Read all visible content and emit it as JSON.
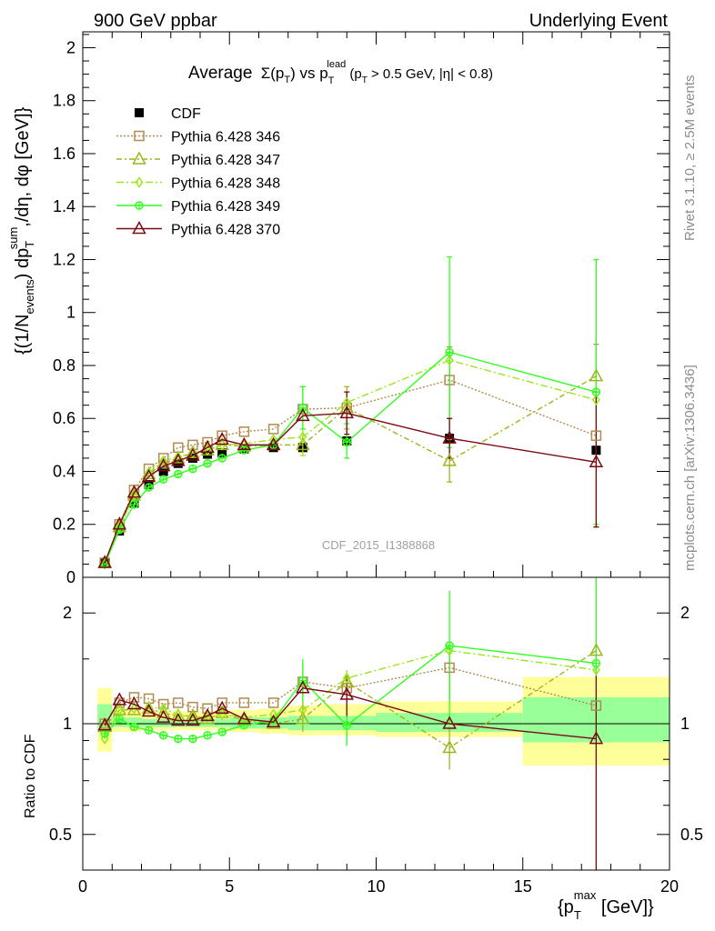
{
  "header": {
    "left": "900 GeV ppbar",
    "right": "Underlying Event"
  },
  "side_labels": {
    "rivet": "Rivet 3.1.10, ≥ 2.5M events",
    "mcplots": "mcplots.cern.ch [arXiv:1306.3436]"
  },
  "title": {
    "average": "Average",
    "sigma": "Σ(p",
    "sub_T": "T",
    "close": ")",
    "vs": " vs p",
    "lead": "lead",
    "cut": " (p",
    "cut_rest": " > 0.5 GeV, |η| < 0.8)"
  },
  "watermark": "CDF_2015_I1388868",
  "ylabel": {
    "part1": "{(1/N",
    "events": "events",
    "part2": ") dp",
    "sum": "sum",
    "T": "T",
    "part3": ",/dη, dφ [GeV]}"
  },
  "ratio_ylabel": "Ratio to CDF",
  "xlabel": {
    "part1": "{p",
    "max": "max",
    "T": "T",
    "part2": " [GeV]}"
  },
  "colors": {
    "cdf": "#000000",
    "p346": "#b08c50",
    "p347": "#a0b41e",
    "p348": "#9ce61e",
    "p349": "#32ff1e",
    "p370": "#7a0a14",
    "band_outer": "#ffff99",
    "band_inner": "#99ff99"
  },
  "chart_data": {
    "type": "line",
    "x_axis": {
      "ticks": [
        0,
        5,
        10,
        15,
        20
      ],
      "tick_labels": [
        "0",
        "5",
        "10",
        "15",
        "20"
      ],
      "range": [
        0,
        20
      ]
    },
    "main_y_axis": {
      "range": [
        0,
        2.06
      ],
      "ticks": [
        0,
        0.2,
        0.4,
        0.6,
        0.8,
        1,
        1.2,
        1.4,
        1.6,
        1.8,
        2
      ],
      "tick_labels": [
        "0",
        "0.2",
        "0.4",
        "0.6",
        "0.8",
        "1",
        "1.2",
        "1.4",
        "1.6",
        "1.8",
        "2"
      ]
    },
    "ratio_y_axis": {
      "scale": "log",
      "range": [
        0.4,
        2.5
      ],
      "ticks": [
        0.5,
        1,
        2
      ],
      "tick_labels": [
        "0.5",
        "1",
        "2"
      ]
    },
    "x": [
      0.75,
      1.25,
      1.75,
      2.25,
      2.75,
      3.25,
      3.75,
      4.25,
      4.75,
      5.5,
      6.5,
      7.5,
      9.0,
      12.5,
      17.5
    ],
    "x_bins": [
      [
        0.5,
        1.0
      ],
      [
        1.0,
        1.5
      ],
      [
        1.5,
        2.0
      ],
      [
        2.0,
        2.5
      ],
      [
        2.5,
        3.0
      ],
      [
        3.0,
        3.5
      ],
      [
        3.5,
        4.0
      ],
      [
        4.0,
        4.5
      ],
      [
        4.5,
        5.0
      ],
      [
        5.0,
        6.0
      ],
      [
        6.0,
        7.0
      ],
      [
        7.0,
        8.0
      ],
      [
        8.0,
        10.0
      ],
      [
        10.0,
        15.0
      ],
      [
        15.0,
        20.0
      ]
    ],
    "data": {
      "name": "CDF",
      "values": [
        0.055,
        0.175,
        0.28,
        0.35,
        0.4,
        0.43,
        0.45,
        0.465,
        0.47,
        0.485,
        0.49,
        0.49,
        0.515,
        0.525,
        0.48
      ],
      "ratio_band_inner": [
        [
          0.95,
          1.13
        ],
        [
          0.98,
          1.04
        ],
        [
          0.98,
          1.04
        ],
        [
          0.98,
          1.03
        ],
        [
          0.98,
          1.03
        ],
        [
          0.98,
          1.03
        ],
        [
          0.98,
          1.03
        ],
        [
          0.98,
          1.03
        ],
        [
          0.98,
          1.03
        ],
        [
          0.97,
          1.04
        ],
        [
          0.97,
          1.04
        ],
        [
          0.96,
          1.05
        ],
        [
          0.96,
          1.05
        ],
        [
          0.95,
          1.07
        ],
        [
          0.89,
          1.18
        ]
      ],
      "ratio_band_outer": [
        [
          0.84,
          1.25
        ],
        [
          0.95,
          1.1
        ],
        [
          0.95,
          1.1
        ],
        [
          0.96,
          1.08
        ],
        [
          0.96,
          1.08
        ],
        [
          0.96,
          1.08
        ],
        [
          0.96,
          1.08
        ],
        [
          0.96,
          1.08
        ],
        [
          0.96,
          1.08
        ],
        [
          0.95,
          1.09
        ],
        [
          0.94,
          1.1
        ],
        [
          0.93,
          1.12
        ],
        [
          0.93,
          1.13
        ],
        [
          0.92,
          1.15
        ],
        [
          0.77,
          1.34
        ]
      ]
    },
    "series": [
      {
        "name": "Pythia 6.428 346",
        "key": "p346",
        "marker": "square",
        "dash": "2,2",
        "values": [
          0.055,
          0.2,
          0.33,
          0.41,
          0.45,
          0.49,
          0.5,
          0.51,
          0.535,
          0.55,
          0.56,
          0.635,
          0.64,
          0.745,
          0.535
        ],
        "ratio": [
          1.0,
          1.14,
          1.18,
          1.17,
          1.13,
          1.14,
          1.11,
          1.1,
          1.14,
          1.14,
          1.14,
          1.3,
          1.25,
          1.42,
          1.12
        ]
      },
      {
        "name": "Pythia 6.428 347",
        "key": "p347",
        "marker": "triangle",
        "dash": "6,3,2,3",
        "values": [
          0.055,
          0.19,
          0.31,
          0.39,
          0.43,
          0.45,
          0.47,
          0.48,
          0.5,
          0.495,
          0.5,
          0.5,
          0.64,
          0.44,
          0.76
        ],
        "ratio": [
          0.98,
          1.09,
          1.09,
          1.1,
          1.07,
          1.05,
          1.05,
          1.03,
          1.07,
          1.02,
          1.0,
          1.03,
          1.3,
          0.86,
          1.58
        ]
      },
      {
        "name": "Pythia 6.428 348",
        "key": "p348",
        "marker": "diamond",
        "dash": "8,3,2,3",
        "values": [
          0.05,
          0.19,
          0.31,
          0.395,
          0.44,
          0.455,
          0.47,
          0.48,
          0.5,
          0.505,
          0.52,
          0.53,
          0.66,
          0.82,
          0.67
        ],
        "ratio": [
          0.91,
          1.09,
          1.1,
          1.11,
          1.1,
          1.06,
          1.04,
          1.04,
          1.06,
          1.04,
          1.06,
          1.09,
          1.33,
          1.58,
          1.4
        ]
      },
      {
        "name": "Pythia 6.428 349",
        "key": "p349",
        "marker": "circle-plus",
        "dash": "",
        "values": [
          0.05,
          0.18,
          0.275,
          0.34,
          0.37,
          0.39,
          0.41,
          0.43,
          0.45,
          0.48,
          0.5,
          0.64,
          0.51,
          0.85,
          0.7
        ],
        "ratio": [
          0.94,
          1.03,
          0.98,
          0.96,
          0.93,
          0.91,
          0.91,
          0.93,
          0.95,
          0.99,
          1.02,
          1.31,
          0.99,
          1.63,
          1.46
        ]
      },
      {
        "name": "Pythia 6.428 370",
        "key": "p370",
        "marker": "triangle",
        "dash": "",
        "values": [
          0.055,
          0.2,
          0.32,
          0.38,
          0.42,
          0.44,
          0.46,
          0.49,
          0.52,
          0.5,
          0.5,
          0.61,
          0.62,
          0.525,
          0.435
        ],
        "ratio": [
          0.99,
          1.16,
          1.13,
          1.08,
          1.04,
          1.02,
          1.02,
          1.05,
          1.1,
          1.03,
          1.01,
          1.25,
          1.2,
          1.0,
          0.91
        ]
      }
    ],
    "error_bars_main": [
      {
        "key": "p346",
        "x": 12.5,
        "lo": 0.6,
        "hi": 0.87
      },
      {
        "key": "p346",
        "x": 17.5,
        "lo": 0.19,
        "hi": 0.88
      },
      {
        "key": "p347",
        "x": 12.5,
        "lo": 0.36,
        "hi": 0.52
      },
      {
        "key": "p347",
        "x": 9.0,
        "lo": 0.56,
        "hi": 0.72
      },
      {
        "key": "p348",
        "x": 7.5,
        "lo": 0.46,
        "hi": 0.72
      },
      {
        "key": "p349",
        "x": 7.5,
        "lo": 0.56,
        "hi": 0.72
      },
      {
        "key": "p349",
        "x": 9.0,
        "lo": 0.45,
        "hi": 0.58
      },
      {
        "key": "p349",
        "x": 12.5,
        "lo": 0.49,
        "hi": 1.21
      },
      {
        "key": "p349",
        "x": 17.5,
        "lo": 0.2,
        "hi": 1.2
      },
      {
        "key": "p370",
        "x": 9.0,
        "lo": 0.54,
        "hi": 0.7
      },
      {
        "key": "p370",
        "x": 12.5,
        "lo": 0.45,
        "hi": 0.6
      },
      {
        "key": "p370",
        "x": 17.5,
        "lo": 0.19,
        "hi": 0.7
      }
    ],
    "error_bars_ratio": [
      {
        "key": "p346",
        "x": 12.5,
        "lo": 1.15,
        "hi": 1.65
      },
      {
        "key": "p347",
        "x": 12.5,
        "lo": 0.75,
        "hi": 0.98
      },
      {
        "key": "p347",
        "x": 7.5,
        "lo": 0.95,
        "hi": 1.45
      },
      {
        "key": "p348",
        "x": 9.0,
        "lo": 1.1,
        "hi": 1.4
      },
      {
        "key": "p349",
        "x": 7.5,
        "lo": 1.15,
        "hi": 1.5
      },
      {
        "key": "p349",
        "x": 9.0,
        "lo": 0.87,
        "hi": 1.12
      },
      {
        "key": "p349",
        "x": 12.5,
        "lo": 1.0,
        "hi": 2.3
      },
      {
        "key": "p349",
        "x": 17.5,
        "lo": 0.4,
        "hi": 2.5
      },
      {
        "key": "p370",
        "x": 9.0,
        "lo": 1.05,
        "hi": 1.36
      },
      {
        "key": "p370",
        "x": 17.5,
        "lo": 0.4,
        "hi": 1.35
      }
    ]
  }
}
